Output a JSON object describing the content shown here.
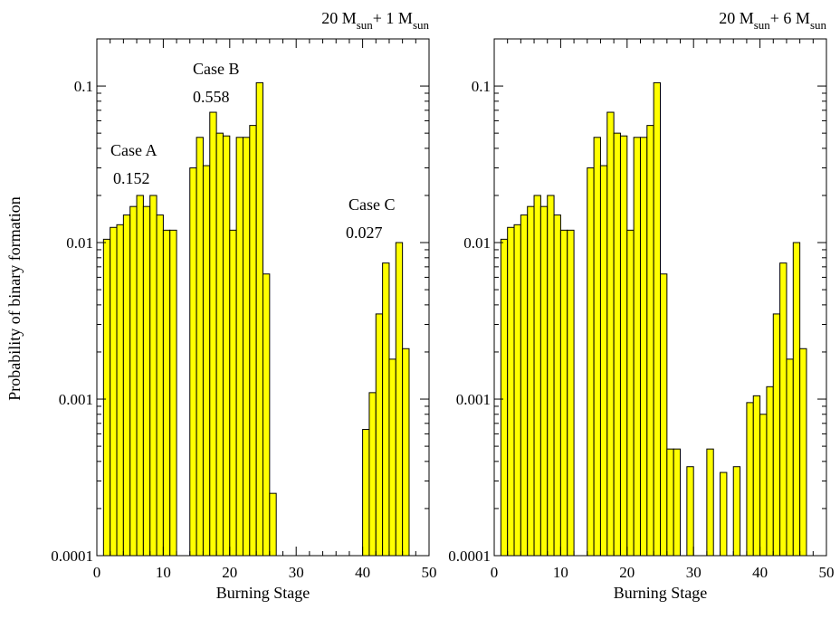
{
  "colors": {
    "bar_fill": "#ffff00",
    "bar_stroke": "#000000"
  },
  "ylabel": "Probability of binary formation",
  "chart_data": [
    {
      "type": "bar",
      "title_main": "20 M",
      "title_sub1": "sun",
      "title_mid": "+ 1 M",
      "title_sub2": "sun",
      "xlabel": "Burning Stage",
      "ylabel": "Probability of binary formation",
      "xlim": [
        0,
        50
      ],
      "ylim": [
        0.0001,
        0.2
      ],
      "yscale": "log",
      "xticks": [
        "0",
        "10",
        "20",
        "30",
        "40",
        "50"
      ],
      "yticks": [
        "0.0001",
        "0.001",
        "0.01",
        "0.1"
      ],
      "grid": false,
      "x": [
        1,
        2,
        3,
        4,
        5,
        6,
        7,
        8,
        9,
        10,
        11,
        14,
        15,
        16,
        17,
        18,
        19,
        20,
        21,
        22,
        23,
        24,
        25,
        26,
        40,
        41,
        42,
        43,
        44,
        45,
        46
      ],
      "values": [
        0.0105,
        0.0125,
        0.013,
        0.015,
        0.017,
        0.02,
        0.017,
        0.02,
        0.015,
        0.012,
        0.012,
        0.03,
        0.047,
        0.031,
        0.068,
        0.05,
        0.048,
        0.012,
        0.047,
        0.047,
        0.056,
        0.105,
        0.0063,
        0.00025,
        0.00064,
        0.0011,
        0.0035,
        0.0074,
        0.0018,
        0.01,
        0.0021
      ],
      "annotations": [
        {
          "label": "Case A",
          "value": "0.152"
        },
        {
          "label": "Case B",
          "value": "0.558"
        },
        {
          "label": "Case C",
          "value": "0.027"
        }
      ]
    },
    {
      "type": "bar",
      "title_main": "20 M",
      "title_sub1": "sun",
      "title_mid": "+ 6 M",
      "title_sub2": "sun",
      "xlabel": "Burning Stage",
      "ylabel": "",
      "xlim": [
        0,
        50
      ],
      "ylim": [
        0.0001,
        0.2
      ],
      "yscale": "log",
      "xticks": [
        "0",
        "10",
        "20",
        "30",
        "40",
        "50"
      ],
      "yticks": [
        "0.0001",
        "0.001",
        "0.01",
        "0.1"
      ],
      "grid": false,
      "x": [
        1,
        2,
        3,
        4,
        5,
        6,
        7,
        8,
        9,
        10,
        11,
        14,
        15,
        16,
        17,
        18,
        19,
        20,
        21,
        22,
        23,
        24,
        25,
        26,
        27,
        29,
        32,
        34,
        36,
        38,
        39,
        40,
        41,
        42,
        43,
        44,
        45,
        46
      ],
      "values": [
        0.0105,
        0.0125,
        0.013,
        0.015,
        0.017,
        0.02,
        0.017,
        0.02,
        0.015,
        0.012,
        0.012,
        0.03,
        0.047,
        0.031,
        0.068,
        0.05,
        0.048,
        0.012,
        0.047,
        0.047,
        0.056,
        0.105,
        0.0063,
        0.00048,
        0.00048,
        0.00037,
        0.00048,
        0.00034,
        0.00037,
        0.00095,
        0.00105,
        0.0008,
        0.0012,
        0.0035,
        0.0074,
        0.0018,
        0.01,
        0.0021
      ]
    }
  ]
}
